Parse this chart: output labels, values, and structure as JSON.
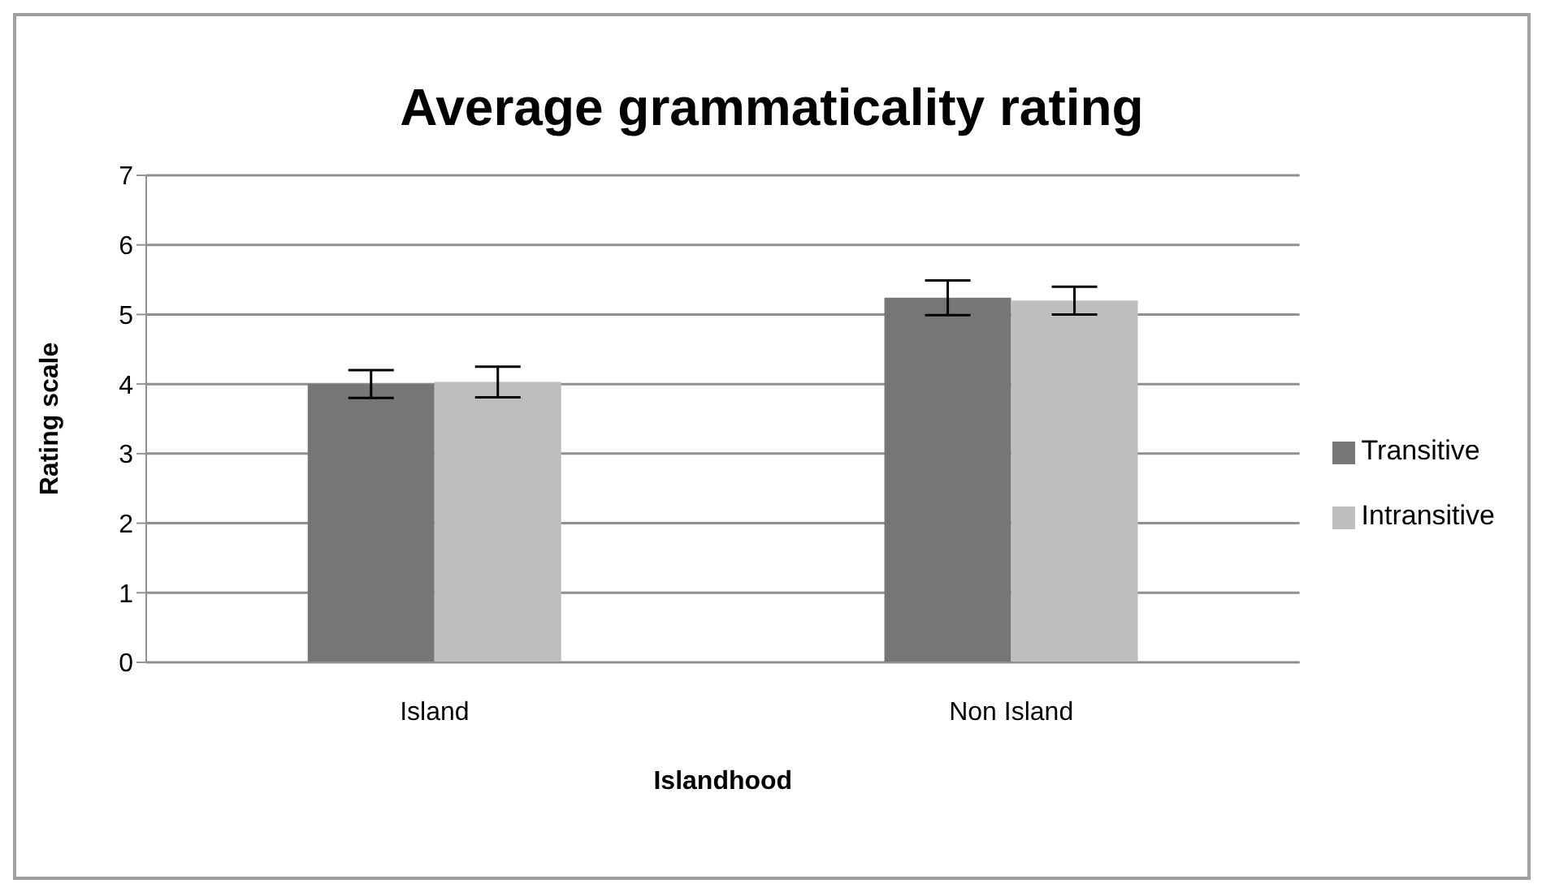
{
  "chart_data": {
    "type": "bar",
    "title": "Average grammaticality rating",
    "xlabel": "Islandhood",
    "ylabel": "Rating scale",
    "categories": [
      "Island",
      "Non Island"
    ],
    "series": [
      {
        "name": "Transitive",
        "color": "#767676",
        "values": [
          4.0,
          5.24
        ],
        "errors": [
          0.2,
          0.25
        ]
      },
      {
        "name": "Intransitive",
        "color": "#bebebe",
        "values": [
          4.03,
          5.2
        ],
        "errors": [
          0.22,
          0.2
        ]
      }
    ],
    "ylim": [
      0,
      7
    ],
    "yticks": [
      0,
      1,
      2,
      3,
      4,
      5,
      6,
      7
    ],
    "grid": "y",
    "legend": "right"
  }
}
